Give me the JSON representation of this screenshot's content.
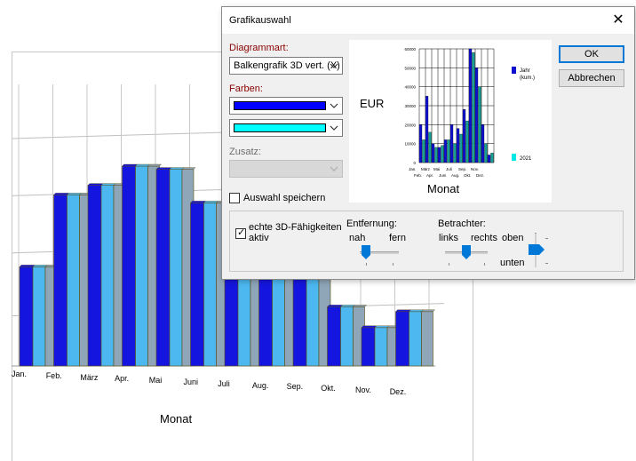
{
  "background_chart": {
    "xlabel": "Monat",
    "chart_data": {
      "type": "bar",
      "categories": [
        "Jan.",
        "Feb.",
        "März",
        "Apr.",
        "Mai",
        "Juni",
        "Juli",
        "Aug.",
        "Sep.",
        "Okt.",
        "Nov.",
        "Dez."
      ],
      "series": [
        {
          "values": [
            62,
            107,
            113,
            125,
            123,
            102,
            62,
            55,
            55,
            37,
            24,
            34
          ]
        },
        {
          "values": [
            62,
            107,
            113,
            125,
            123,
            102,
            62,
            55,
            55,
            37,
            24,
            34
          ]
        },
        {
          "values": [
            62,
            107,
            113,
            125,
            123,
            102,
            62,
            55,
            55,
            37,
            24,
            34
          ]
        }
      ],
      "ylim": [
        0,
        140
      ],
      "colors": [
        "#1515e0",
        "#4db8f0",
        "#8fa6b8"
      ],
      "grid": true
    }
  },
  "dialog": {
    "title": "Grafikauswahl",
    "diagrammart_label": "Diagrammart:",
    "diagrammart_value": "Balkengrafik 3D vert. (X)",
    "farben_label": "Farben:",
    "color1": "#0000ff",
    "color2": "#00ffff",
    "zusatz_label": "Zusatz:",
    "save_label": "Auswahl speichern",
    "ok_label": "OK",
    "cancel_label": "Abbrechen",
    "threeD_label_1": "echte 3D-Fähigkeiten",
    "threeD_label_2": "aktiv",
    "entfernung_label": "Entfernung:",
    "nah": "nah",
    "fern": "fern",
    "betrachter_label": "Betrachter:",
    "links": "links",
    "rechts": "rechts",
    "oben": "oben",
    "unten": "unten"
  },
  "preview": {
    "ylabel": "EUR",
    "xlabel": "Monat",
    "legend_1": "Jahr (kum.)",
    "legend_2": "2021",
    "yticks": [
      "60000",
      "50000",
      "40000",
      "30000",
      "20000",
      "10000",
      "0"
    ],
    "months_top": [
      "Jan.",
      "März",
      "Mai",
      "Juli",
      "Sep.",
      "Nov."
    ],
    "months_bottom": [
      "Feb.",
      "Apr.",
      "Juni",
      "Aug.",
      "Okt.",
      "Dez."
    ],
    "chart_data": {
      "type": "bar",
      "categories": [
        "Jan.",
        "Feb.",
        "März",
        "Apr.",
        "Mai",
        "Juni",
        "Juli",
        "Aug.",
        "Sep.",
        "Okt.",
        "Nov.",
        "Dez."
      ],
      "series": [
        {
          "name": "Jahr (kum.)",
          "values": [
            20000,
            35000,
            10000,
            8000,
            12000,
            20000,
            18000,
            28000,
            60000,
            50000,
            20000,
            4000
          ]
        },
        {
          "name": "2021",
          "values": [
            12000,
            16000,
            8000,
            9000,
            12000,
            10000,
            15000,
            22000,
            58000,
            40000,
            10000,
            5000
          ]
        }
      ],
      "ylim": [
        0,
        60000
      ],
      "colors": [
        "#1010d0",
        "#14a098"
      ]
    }
  }
}
